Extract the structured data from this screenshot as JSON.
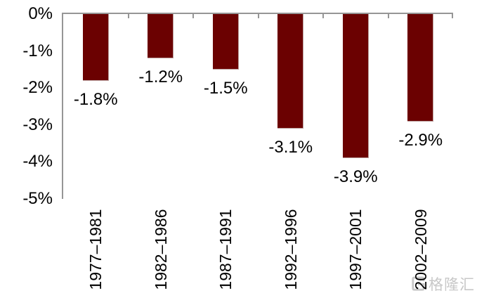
{
  "chart_data": {
    "type": "bar",
    "title": "",
    "xlabel": "",
    "ylabel": "",
    "categories": [
      "1977–1981",
      "1982–1986",
      "1987–1991",
      "1992–1996",
      "1997–2001",
      "2002–2009"
    ],
    "values": [
      -1.8,
      -1.2,
      -1.5,
      -3.1,
      -3.9,
      -2.9
    ],
    "data_labels": [
      "-1.8%",
      "-1.2%",
      "-1.5%",
      "-3.1%",
      "-3.9%",
      "-2.9%"
    ],
    "ylim": [
      -5,
      0
    ],
    "yticks": [
      {
        "value": 0,
        "label": "0%"
      },
      {
        "value": -1,
        "label": "-1%"
      },
      {
        "value": -2,
        "label": "-2%"
      },
      {
        "value": -3,
        "label": "-3%"
      },
      {
        "value": -4,
        "label": "-4%"
      },
      {
        "value": -5,
        "label": "-5%"
      }
    ],
    "grid": false,
    "legend": false,
    "x_tick_rotation_deg": 90,
    "bar_color": "#6b0101",
    "axis_color": "#969696",
    "label_color": "#000000"
  },
  "watermark": {
    "text": "格隆汇",
    "logo_icon": "gelonghui-logo",
    "color": "#c3c3c3"
  }
}
